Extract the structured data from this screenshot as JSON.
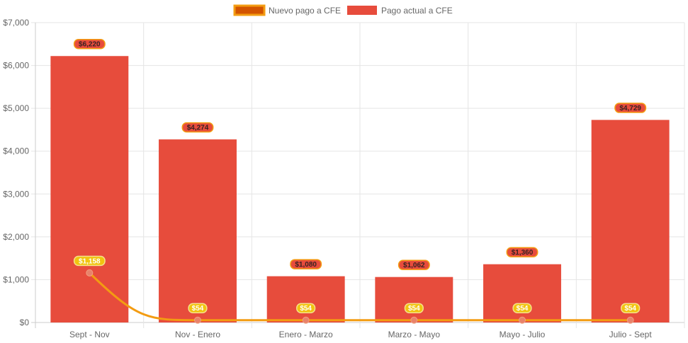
{
  "chart_data": {
    "type": "bar",
    "categories": [
      "Sept - Nov",
      "Nov - Enero",
      "Enero - Marzo",
      "Marzo - Mayo",
      "Mayo - Julio",
      "Julio - Sept"
    ],
    "series": [
      {
        "name": "Nuevo pago a CFE",
        "kind": "line",
        "color": "#f39c12",
        "values": [
          1158,
          54,
          54,
          54,
          54,
          54
        ],
        "labels": [
          "$1,158",
          "$54",
          "$54",
          "$54",
          "$54",
          "$54"
        ]
      },
      {
        "name": "Pago actual a CFE",
        "kind": "bar",
        "color": "#e74c3c",
        "values": [
          6220,
          4274,
          1080,
          1062,
          1360,
          4729
        ],
        "labels": [
          "$6,220",
          "$4,274",
          "$1,080",
          "$1,062",
          "$1,360",
          "$4,729"
        ]
      }
    ],
    "yticks": [
      "$0",
      "$1,000",
      "$2,000",
      "$3,000",
      "$4,000",
      "$5,000",
      "$6,000",
      "$7,000"
    ],
    "ylim": [
      0,
      7000
    ],
    "grid": true,
    "legend": "top-center",
    "title": "",
    "xlabel": "",
    "ylabel": ""
  }
}
